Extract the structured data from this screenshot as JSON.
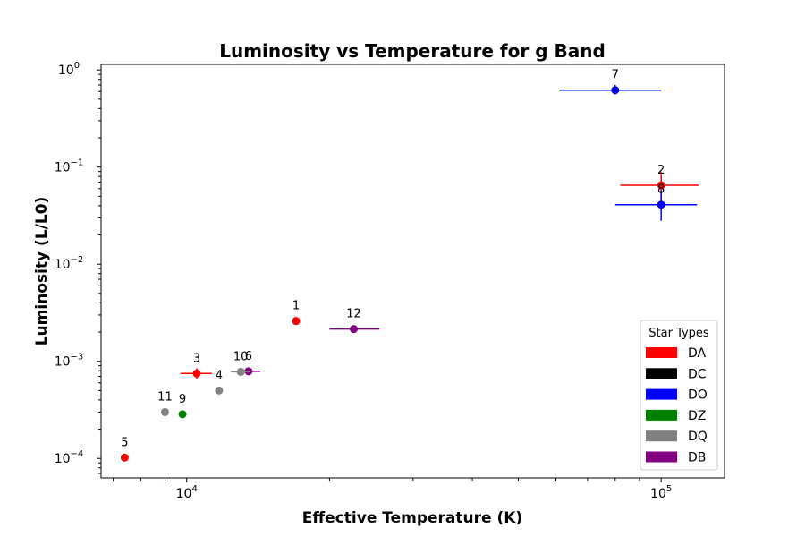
{
  "chart_data": {
    "type": "scatter",
    "title": "Luminosity vs Temperature for g Band",
    "xlabel": "Effective Temperature (K)",
    "ylabel": "Luminosity (L/L0)",
    "xscale": "log",
    "yscale": "log",
    "xlim": [
      6600,
      136000
    ],
    "ylim": [
      6.3e-05,
      1.14
    ],
    "x_ticks": [
      {
        "value": 10000,
        "base": "10",
        "exp": "4"
      },
      {
        "value": 100000,
        "base": "10",
        "exp": "5"
      }
    ],
    "y_ticks": [
      {
        "value": 0.0001,
        "base": "10",
        "exp": "−4"
      },
      {
        "value": 0.001,
        "base": "10",
        "exp": "−3"
      },
      {
        "value": 0.01,
        "base": "10",
        "exp": "−2"
      },
      {
        "value": 0.1,
        "base": "10",
        "exp": "−1"
      },
      {
        "value": 1,
        "base": "10",
        "exp": "0"
      }
    ],
    "grid": false,
    "legend": {
      "title": "Star Types",
      "placement": "bottom-right",
      "entries": [
        {
          "label": "DA",
          "color": "#ff0000"
        },
        {
          "label": "DC",
          "color": "#000000"
        },
        {
          "label": "DO",
          "color": "#0000ff"
        },
        {
          "label": "DZ",
          "color": "#008000"
        },
        {
          "label": "DQ",
          "color": "#808080"
        },
        {
          "label": "DB",
          "color": "#800080"
        }
      ]
    },
    "points": [
      {
        "label": "1",
        "type": "DA",
        "x": 17000,
        "y": 0.0026
      },
      {
        "label": "2",
        "type": "DA",
        "x": 100000,
        "y": 0.065,
        "xerr": [
          82000,
          120000
        ],
        "yerr": [
          0.045,
          0.09
        ]
      },
      {
        "label": "3",
        "type": "DA",
        "x": 10500,
        "y": 0.00075,
        "xerr": [
          9700,
          11300
        ],
        "yerr": [
          0.00066,
          0.00085
        ]
      },
      {
        "label": "4",
        "type": "DQ",
        "x": 11700,
        "y": 0.0005
      },
      {
        "label": "5",
        "type": "DA",
        "x": 7400,
        "y": 0.000102
      },
      {
        "label": "6",
        "type": "DB",
        "x": 13500,
        "y": 0.00079,
        "xerr": [
          12800,
          14300
        ]
      },
      {
        "label": "7",
        "type": "DO",
        "x": 80000,
        "y": 0.62,
        "xerr": [
          61000,
          100000
        ],
        "yerr": [
          0.56,
          0.7
        ]
      },
      {
        "label": "8",
        "type": "DO",
        "x": 100000,
        "y": 0.041,
        "xerr": [
          80000,
          119000
        ],
        "yerr": [
          0.028,
          0.058
        ]
      },
      {
        "label": "9",
        "type": "DZ",
        "x": 9800,
        "y": 0.000285
      },
      {
        "label": "10",
        "type": "DQ",
        "x": 13000,
        "y": 0.00078,
        "xerr": [
          12400,
          13600
        ]
      },
      {
        "label": "11",
        "type": "DQ",
        "x": 9000,
        "y": 0.0003
      },
      {
        "label": "12",
        "type": "DB",
        "x": 22500,
        "y": 0.00215,
        "xerr": [
          20000,
          25500
        ]
      }
    ]
  }
}
